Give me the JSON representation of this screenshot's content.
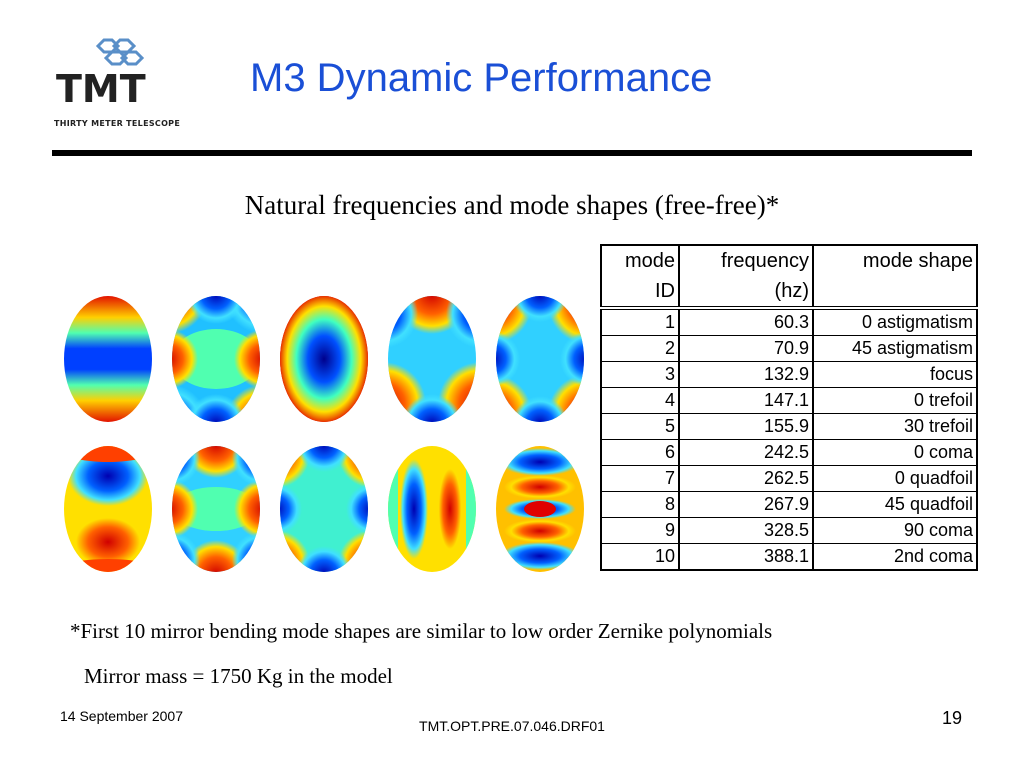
{
  "logo": {
    "name": "TMT",
    "tagline": "THIRTY METER TELESCOPE"
  },
  "title": "M3 Dynamic Performance",
  "subtitle": "Natural frequencies and mode shapes (free-free)*",
  "table": {
    "headers_row1": [
      "mode",
      "frequency",
      "mode shape"
    ],
    "headers_row2": [
      "ID",
      "(hz)",
      ""
    ],
    "rows": [
      [
        "1",
        "60.3",
        "0 astigmatism"
      ],
      [
        "2",
        "70.9",
        "45 astigmatism"
      ],
      [
        "3",
        "132.9",
        "focus"
      ],
      [
        "4",
        "147.1",
        "0 trefoil"
      ],
      [
        "5",
        "155.9",
        "30 trefoil"
      ],
      [
        "6",
        "242.5",
        "0 coma"
      ],
      [
        "7",
        "262.5",
        "0 quadfoil"
      ],
      [
        "8",
        "267.9",
        "45 quadfoil"
      ],
      [
        "9",
        "328.5",
        "90 coma"
      ],
      [
        "10",
        "388.1",
        "2nd coma"
      ]
    ]
  },
  "mode_images": [
    {
      "icon": "mode-shape-1-astigmatism"
    },
    {
      "icon": "mode-shape-2-astigmatism"
    },
    {
      "icon": "mode-shape-3-focus"
    },
    {
      "icon": "mode-shape-4-trefoil"
    },
    {
      "icon": "mode-shape-5-trefoil"
    },
    {
      "icon": "mode-shape-6-coma"
    },
    {
      "icon": "mode-shape-7-quadfoil"
    },
    {
      "icon": "mode-shape-8-quadfoil"
    },
    {
      "icon": "mode-shape-9-coma"
    },
    {
      "icon": "mode-shape-10-coma"
    }
  ],
  "footnote": "*First 10 mirror bending mode shapes are similar  to low order Zernike polynomials",
  "mass_note": "Mirror mass = 1750 Kg in the model",
  "footer": {
    "date": "14 September 2007",
    "doc_id": "TMT.OPT.PRE.07.046.DRF01",
    "page": "19"
  },
  "colors": {
    "title": "#1a4fd6",
    "jet_low": "#0000c8",
    "jet_high": "#e00000"
  }
}
